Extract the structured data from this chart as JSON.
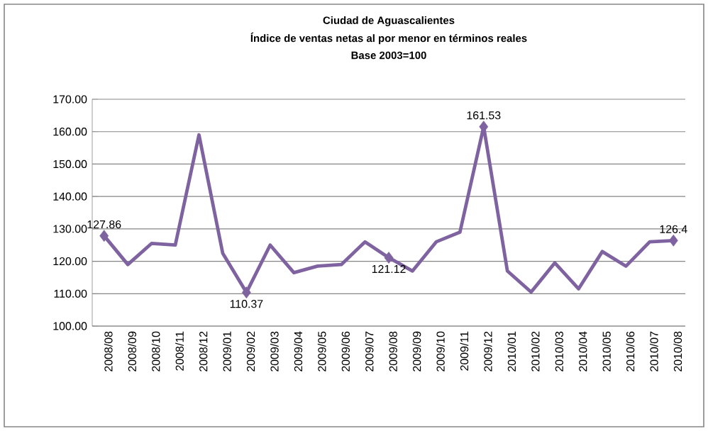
{
  "chart_data": {
    "type": "line",
    "title": "Ciudad de Aguascalientes",
    "subtitle": "Índice de ventas netas al por menor en términos reales",
    "annotations": [
      "Base 2003=100"
    ],
    "categories": [
      "2008/08",
      "2008/09",
      "2008/10",
      "2008/11",
      "2008/12",
      "2009/01",
      "2009/02",
      "2009/03",
      "2009/04",
      "2009/05",
      "2009/06",
      "2009/07",
      "2009/08",
      "2009/09",
      "2009/10",
      "2009/11",
      "2009/12",
      "2010/01",
      "2010/02",
      "2010/03",
      "2010/04",
      "2010/05",
      "2010/06",
      "2010/07",
      "2010/08"
    ],
    "series": [
      {
        "color": "#7f63a0",
        "values": [
          127.86,
          119,
          125.5,
          125,
          159,
          122.5,
          110.37,
          125,
          116.5,
          118.5,
          119,
          126,
          121.12,
          117,
          126,
          129,
          161.53,
          117,
          110.5,
          119.5,
          111.5,
          123,
          118.5,
          126,
          126.4
        ]
      },
      {
        "type": "scatter",
        "color": "#7f63a0",
        "marker": "diamond",
        "values": [
          127.86,
          null,
          null,
          null,
          null,
          null,
          110.37,
          null,
          null,
          null,
          null,
          null,
          121.12,
          null,
          null,
          null,
          161.53,
          null,
          null,
          null,
          null,
          null,
          null,
          null,
          126.4
        ],
        "value_labels": [
          "127.86",
          null,
          null,
          null,
          null,
          null,
          "110.37",
          null,
          null,
          null,
          null,
          null,
          "121.12",
          null,
          null,
          null,
          "161.53",
          null,
          null,
          null,
          null,
          null,
          null,
          null,
          "126.4"
        ]
      }
    ],
    "ylim": [
      100,
      170
    ],
    "yticks": [
      {
        "value": 100,
        "label": "100.00"
      },
      {
        "value": 110,
        "label": "110.00"
      },
      {
        "value": 120,
        "label": "120.00"
      },
      {
        "value": 130,
        "label": "130.00"
      },
      {
        "value": 140,
        "label": "140.00"
      },
      {
        "value": 150,
        "label": "150.00"
      },
      {
        "value": 160,
        "label": "160.00"
      },
      {
        "value": 170,
        "label": "170.00"
      }
    ],
    "grid": "y"
  }
}
